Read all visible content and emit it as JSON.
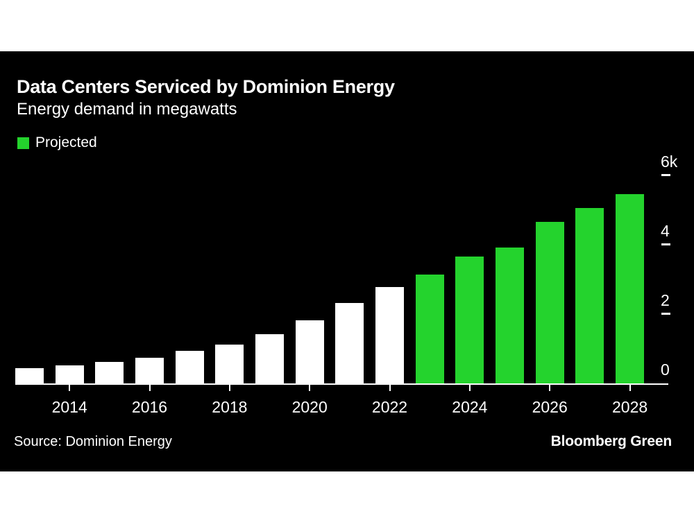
{
  "page": {
    "background": "#ffffff",
    "card_background": "#000000",
    "text_color": "#ffffff"
  },
  "header": {
    "title": "Data Centers Serviced by Dominion Energy",
    "subtitle": "Energy demand in megawatts"
  },
  "legend": {
    "label": "Projected",
    "color": "#24d32d"
  },
  "chart_data": {
    "type": "bar",
    "title": "Data Centers Serviced by Dominion Energy",
    "subtitle": "Energy demand in megawatts",
    "unit": "megawatts",
    "ylim": [
      0,
      6000
    ],
    "grid": false,
    "legend_position": "top-left",
    "colors": {
      "historical": "#ffffff",
      "projected": "#24d32d"
    },
    "y_ticks": [
      {
        "label": "6k",
        "value": 6000
      },
      {
        "label": "4",
        "value": 4000
      },
      {
        "label": "2",
        "value": 2000
      },
      {
        "label": "0",
        "value": 0
      }
    ],
    "x_tick_labels": [
      "2014",
      "2016",
      "2018",
      "2020",
      "2022",
      "2024",
      "2026",
      "2028"
    ],
    "bars": [
      {
        "year": 2013,
        "value": 450,
        "projected": false
      },
      {
        "year": 2014,
        "value": 520,
        "projected": false
      },
      {
        "year": 2015,
        "value": 630,
        "projected": false
      },
      {
        "year": 2016,
        "value": 740,
        "projected": false
      },
      {
        "year": 2017,
        "value": 940,
        "projected": false
      },
      {
        "year": 2018,
        "value": 1120,
        "projected": false
      },
      {
        "year": 2019,
        "value": 1420,
        "projected": false
      },
      {
        "year": 2020,
        "value": 1820,
        "projected": false
      },
      {
        "year": 2021,
        "value": 2320,
        "projected": false
      },
      {
        "year": 2022,
        "value": 2780,
        "projected": false
      },
      {
        "year": 2023,
        "value": 3140,
        "projected": true
      },
      {
        "year": 2024,
        "value": 3660,
        "projected": true
      },
      {
        "year": 2025,
        "value": 3930,
        "projected": true
      },
      {
        "year": 2026,
        "value": 4660,
        "projected": true
      },
      {
        "year": 2027,
        "value": 5060,
        "projected": true
      },
      {
        "year": 2028,
        "value": 5460,
        "projected": true
      }
    ]
  },
  "footer": {
    "source": "Source: Dominion Energy",
    "brand": "Bloomberg Green"
  }
}
